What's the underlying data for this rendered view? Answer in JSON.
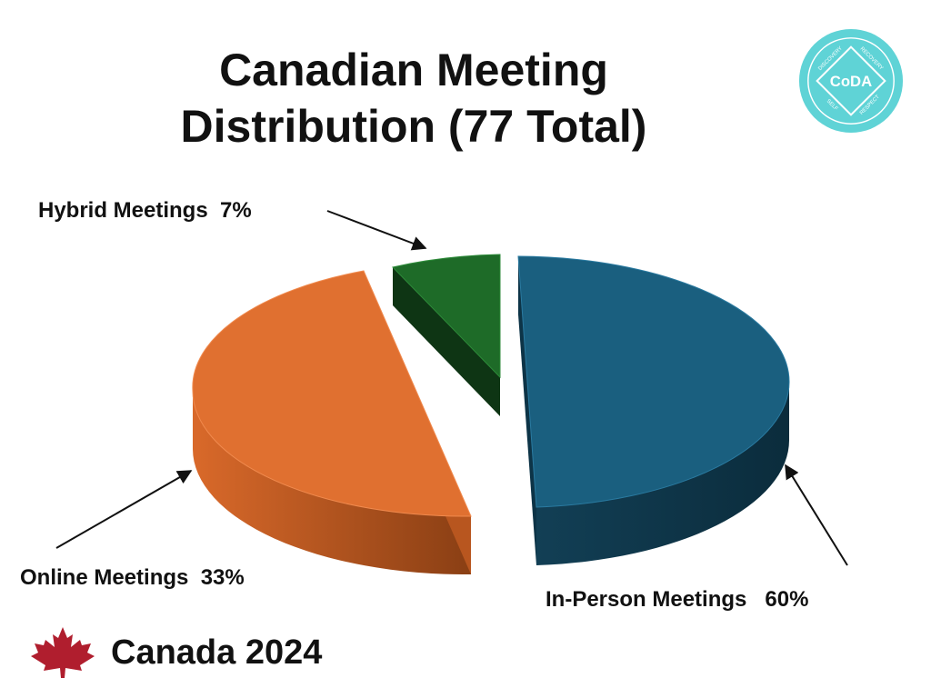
{
  "chart_data": {
    "type": "pie",
    "title_line1": "Canadian Meeting",
    "title_line2": "Distribution (77 Total)",
    "slices": [
      {
        "label": "In-Person Meetings",
        "pct_text": "60%",
        "value": 60,
        "color": "#1a5f7f",
        "side": "#0d3447"
      },
      {
        "label": "Online Meetings",
        "pct_text": "33%",
        "value": 33,
        "color": "#e07030",
        "side": "#a34d1c"
      },
      {
        "label": "Hybrid Meetings",
        "pct_text": "7%",
        "value": 7,
        "color": "#1e6b28",
        "side": "#0e3514"
      }
    ]
  },
  "logo": {
    "center_text": "CoDA",
    "ring_texts": [
      "DISCOVERY",
      "RECOVERY",
      "SELF",
      "RESPECT"
    ],
    "color": "#5fd3d6"
  },
  "footer": {
    "text": "Canada 2024",
    "icon": "maple-leaf-icon",
    "icon_color": "#b01e2e"
  }
}
